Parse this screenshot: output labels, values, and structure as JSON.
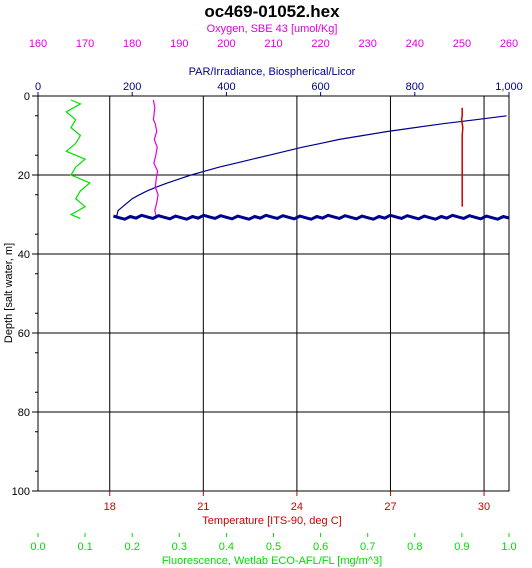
{
  "chart_data": {
    "type": "line",
    "title": "oc469-01052.hex",
    "grid": true,
    "colors": {
      "oxygen": "#e000e0",
      "par": "#00008b",
      "temperature": "#cc0000",
      "fluorescence": "#00dd00",
      "depth": "#000000",
      "grid": "#000000"
    },
    "axes": {
      "depth": {
        "label": "Depth [salt water, m]",
        "range": [
          0,
          100
        ],
        "ticks": [
          "0",
          "20",
          "40",
          "60",
          "80",
          "100"
        ],
        "reversed": true
      },
      "oxygen": {
        "label": "Oxygen, SBE 43 [umol/Kg]",
        "range": [
          160,
          260
        ],
        "ticks": [
          "160",
          "170",
          "180",
          "190",
          "200",
          "210",
          "220",
          "230",
          "240",
          "250",
          "260"
        ]
      },
      "par": {
        "label": "PAR/Irradiance, Biospherical/Licor",
        "range": [
          0,
          1000
        ],
        "ticks": [
          "0",
          "200",
          "400",
          "600",
          "800",
          "1,000"
        ]
      },
      "temperature": {
        "label": "Temperature [ITS-90, deg C]",
        "range": [
          15.7,
          30.8
        ],
        "ticks": [
          "18",
          "21",
          "24",
          "27",
          "30"
        ],
        "tick_values": [
          18,
          21,
          24,
          27,
          30
        ]
      },
      "fluorescence": {
        "label": "Fluorescence, Wetlab ECO-AFL/FL [mg/m^3]",
        "range": [
          0,
          1
        ],
        "ticks": [
          "0.0",
          "0.1",
          "0.2",
          "0.3",
          "0.4",
          "0.5",
          "0.6",
          "0.7",
          "0.8",
          "0.9",
          "1.0"
        ]
      }
    },
    "series": [
      {
        "axis": "par",
        "depth": [
          5,
          6,
          7,
          8,
          9,
          10,
          11,
          12,
          13,
          14,
          15,
          16,
          17,
          18,
          19,
          20,
          21,
          22,
          23,
          24,
          25,
          26,
          27,
          28,
          29,
          30,
          31
        ],
        "values": [
          995,
          930,
          860,
          800,
          740,
          690,
          640,
          600,
          560,
          525,
          490,
          455,
          420,
          385,
          355,
          325,
          300,
          275,
          252,
          232,
          215,
          200,
          190,
          180,
          170,
          168,
          166
        ]
      },
      {
        "axis": "oxygen",
        "depth": [
          1,
          3,
          5,
          6,
          7,
          9,
          11,
          13,
          15,
          17,
          19,
          21,
          23,
          25,
          27,
          29,
          30,
          31
        ],
        "values": [
          184.5,
          184.8,
          184.6,
          184.5,
          184.9,
          185.2,
          184.7,
          185.3,
          185.0,
          184.6,
          185.4,
          185.1,
          184.9,
          185.5,
          185.2,
          184.8,
          185.0,
          185.2
        ]
      },
      {
        "axis": "temperature",
        "depth": [
          3,
          5,
          6,
          7,
          8,
          10,
          15,
          20,
          25,
          28
        ],
        "values": [
          29.3,
          29.3,
          29.28,
          29.3,
          29.32,
          29.3,
          29.3,
          29.3,
          29.3,
          29.3
        ]
      },
      {
        "axis": "fluorescence",
        "depth": [
          1,
          2,
          4,
          6,
          8,
          10,
          12,
          14,
          16,
          18,
          20,
          22,
          24,
          26,
          28,
          30,
          31
        ],
        "values": [
          0.07,
          0.09,
          0.06,
          0.08,
          0.07,
          0.09,
          0.08,
          0.06,
          0.1,
          0.08,
          0.07,
          0.11,
          0.09,
          0.08,
          0.1,
          0.07,
          0.09
        ]
      }
    ]
  }
}
